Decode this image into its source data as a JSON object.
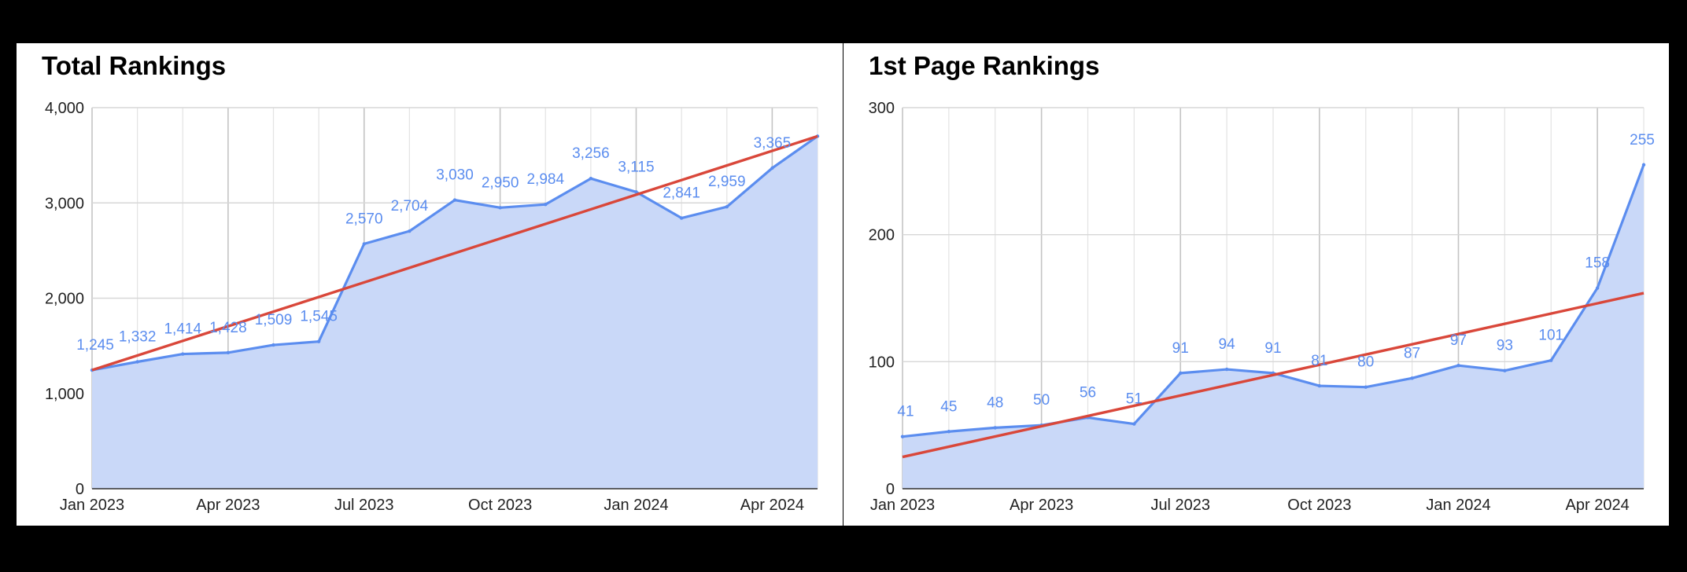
{
  "colors": {
    "series": "#5b8def",
    "area_fill": "#c9d8f8",
    "trendline": "#d9473a",
    "grid": "#d7d7d7",
    "axis_label": "#222222",
    "data_label": "#5b8def"
  },
  "chart_data": [
    {
      "type": "area",
      "title": "Total Rankings",
      "x": [
        "Jan 2023",
        "Feb 2023",
        "Mar 2023",
        "Apr 2023",
        "May 2023",
        "Jun 2023",
        "Jul 2023",
        "Aug 2023",
        "Sep 2023",
        "Oct 2023",
        "Nov 2023",
        "Dec 2023",
        "Jan 2024",
        "Feb 2024",
        "Mar 2024",
        "Apr 2024",
        "May 2024"
      ],
      "series": [
        {
          "values": [
            1245,
            1332,
            1414,
            1428,
            1509,
            1545,
            2570,
            2704,
            3030,
            2950,
            2984,
            3256,
            3115,
            2841,
            2959,
            3365,
            3700
          ]
        }
      ],
      "data_labels": [
        "1,245",
        "1,332",
        "1,414",
        "1,428",
        "1,509",
        "1,545",
        "2,570",
        "2,704",
        "3,030",
        "2,950",
        "2,984",
        "3,256",
        "3,115",
        "2,841",
        "2,959",
        "3,365",
        ""
      ],
      "trendline": {
        "type": "linear",
        "start": 1245,
        "end": 3700
      },
      "ylim": [
        0,
        4000
      ],
      "y_ticks": [
        "0",
        "1,000",
        "2,000",
        "3,000",
        "4,000"
      ],
      "x_ticks": [
        "Jan 2023",
        "Apr 2023",
        "Jul 2023",
        "Oct 2023",
        "Jan 2024",
        "Apr 2024"
      ],
      "grid": true,
      "legend": "none"
    },
    {
      "type": "area",
      "title": "1st Page Rankings",
      "x": [
        "Jan 2023",
        "Feb 2023",
        "Mar 2023",
        "Apr 2023",
        "May 2023",
        "Jun 2023",
        "Jul 2023",
        "Aug 2023",
        "Sep 2023",
        "Oct 2023",
        "Nov 2023",
        "Dec 2023",
        "Jan 2024",
        "Feb 2024",
        "Mar 2024",
        "Apr 2024",
        "May 2024"
      ],
      "series": [
        {
          "values": [
            41,
            45,
            48,
            50,
            56,
            51,
            91,
            94,
            91,
            81,
            80,
            87,
            97,
            93,
            101,
            158,
            255
          ]
        }
      ],
      "data_labels": [
        "41",
        "45",
        "48",
        "50",
        "56",
        "51",
        "91",
        "94",
        "91",
        "81",
        "80",
        "87",
        "97",
        "93",
        "101",
        "158",
        "255"
      ],
      "trendline": {
        "type": "linear",
        "start": 25,
        "end": 154
      },
      "ylim": [
        0,
        300
      ],
      "y_ticks": [
        "0",
        "100",
        "200",
        "300"
      ],
      "x_ticks": [
        "Jan 2023",
        "Apr 2023",
        "Jul 2023",
        "Oct 2023",
        "Jan 2024",
        "Apr 2024"
      ],
      "grid": true,
      "legend": "none"
    }
  ]
}
